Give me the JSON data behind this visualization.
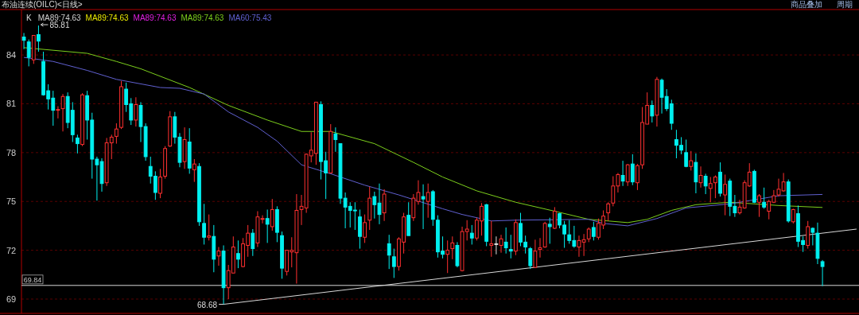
{
  "chart_data": {
    "type": "candlestick",
    "title": "布油连续(OILC)<日线>",
    "legend_title": "K",
    "annotations": [
      "85.81",
      "68.68",
      "商品叠加",
      "周期"
    ],
    "categories": [
      null,
      null,
      null,
      null,
      null,
      null,
      null,
      null,
      null,
      null,
      null,
      null,
      null,
      null,
      null,
      null,
      null,
      null,
      null,
      null,
      null,
      null,
      null,
      null,
      null,
      null,
      null,
      null,
      null,
      null,
      null,
      null,
      null,
      null,
      null,
      null,
      null,
      null,
      null,
      null,
      null,
      null,
      null,
      null,
      null,
      null,
      null,
      null,
      null,
      null,
      null,
      null,
      null,
      null,
      null,
      null,
      null,
      null,
      null,
      null,
      null,
      null,
      null,
      null,
      null,
      null,
      null,
      null,
      null,
      null,
      null,
      null,
      null,
      null,
      null,
      null,
      null,
      null,
      null,
      null,
      null,
      null,
      null,
      null,
      null,
      null,
      null,
      null,
      null,
      null,
      null,
      null,
      null,
      null,
      null,
      null,
      null,
      null,
      null,
      null,
      null,
      null,
      null,
      null,
      null,
      null,
      null,
      null,
      null,
      null,
      null,
      null,
      null,
      null,
      null,
      null,
      null,
      null,
      null,
      null,
      null,
      null,
      null,
      null,
      null,
      null,
      null,
      null,
      null,
      null,
      null,
      null,
      null,
      null,
      null,
      null,
      null,
      null,
      null,
      null,
      null,
      null,
      null,
      null,
      null,
      null,
      null,
      null,
      null,
      null,
      null,
      null,
      null,
      null,
      null,
      null,
      null,
      null,
      null,
      null,
      null,
      null,
      null,
      null,
      null,
      null,
      null,
      null,
      null,
      null,
      null,
      null
    ],
    "ohlc": [
      [
        85.1,
        85.35,
        84.36,
        84.9
      ],
      [
        84.8,
        84.95,
        83.3,
        83.85
      ],
      [
        83.7,
        85.2,
        83.45,
        85.2
      ],
      [
        85.25,
        85.81,
        84.2,
        84.85
      ],
      [
        83.6,
        84.2,
        81.5,
        81.55
      ],
      [
        81.8,
        82.2,
        80.65,
        81.3
      ],
      [
        81.35,
        81.8,
        79.65,
        80.6
      ],
      [
        80.6,
        80.85,
        80.1,
        80.65
      ],
      [
        80.7,
        81.6,
        79.3,
        81.45
      ],
      [
        81.45,
        81.7,
        79.5,
        79.85
      ],
      [
        80.6,
        81.1,
        78.65,
        79.1
      ],
      [
        78.9,
        79.1,
        77.95,
        78.55
      ],
      [
        78.5,
        81.65,
        78.4,
        81.55
      ],
      [
        81.5,
        81.8,
        78.8,
        80.0
      ],
      [
        80.0,
        80.45,
        76.4,
        77.6
      ],
      [
        77.6,
        77.75,
        75.05,
        77.25
      ],
      [
        77.45,
        77.65,
        75.6,
        76.1
      ],
      [
        76.15,
        78.9,
        75.95,
        78.6
      ],
      [
        78.6,
        79.1,
        77.6,
        78.95
      ],
      [
        79.0,
        79.8,
        78.55,
        79.45
      ],
      [
        79.55,
        82.4,
        79.45,
        82.05
      ],
      [
        81.9,
        82.3,
        80.5,
        80.95
      ],
      [
        81.0,
        81.35,
        79.7,
        80.0
      ],
      [
        80.0,
        81.4,
        79.6,
        80.95
      ],
      [
        80.9,
        81.1,
        78.65,
        79.6
      ],
      [
        79.6,
        79.8,
        77.5,
        77.75
      ],
      [
        77.15,
        77.75,
        76.1,
        76.55
      ],
      [
        76.55,
        76.85,
        75.1,
        75.55
      ],
      [
        75.5,
        77.0,
        75.2,
        76.5
      ],
      [
        76.55,
        78.4,
        76.4,
        78.25
      ],
      [
        78.4,
        80.55,
        78.35,
        80.2
      ],
      [
        80.2,
        80.5,
        78.55,
        78.95
      ],
      [
        78.95,
        79.2,
        77.1,
        77.4
      ],
      [
        77.45,
        79.55,
        77.0,
        78.8
      ],
      [
        78.65,
        79.5,
        76.7,
        77.05
      ],
      [
        76.95,
        77.6,
        76.2,
        77.3
      ],
      [
        77.15,
        77.35,
        73.5,
        73.75
      ],
      [
        73.65,
        74.85,
        72.35,
        72.8
      ],
      [
        72.8,
        74.2,
        72.6,
        72.88
      ],
      [
        72.85,
        73.55,
        70.65,
        71.45
      ],
      [
        71.65,
        72.2,
        71.05,
        71.95
      ],
      [
        71.95,
        72.3,
        68.68,
        69.7
      ],
      [
        69.7,
        71.1,
        69.0,
        70.75
      ],
      [
        70.6,
        72.85,
        70.6,
        72.2
      ],
      [
        71.8,
        72.6,
        70.9,
        71.45
      ],
      [
        71.0,
        72.75,
        70.95,
        72.4
      ],
      [
        72.3,
        73.55,
        71.6,
        73.05
      ],
      [
        73.05,
        73.3,
        71.65,
        72.1
      ],
      [
        72.45,
        74.4,
        72.2,
        74.05
      ],
      [
        73.9,
        74.15,
        73.65,
        73.95
      ],
      [
        73.95,
        74.5,
        72.45,
        73.6
      ],
      [
        73.45,
        75.15,
        73.2,
        74.5
      ],
      [
        74.5,
        74.7,
        72.5,
        73.1
      ],
      [
        72.9,
        73.15,
        70.25,
        70.9
      ],
      [
        70.7,
        72.0,
        70.45,
        72.0
      ],
      [
        71.9,
        72.8,
        70.95,
        72.0
      ],
      [
        71.85,
        75.45,
        69.95,
        74.45
      ],
      [
        74.5,
        75.4,
        73.55,
        74.7
      ],
      [
        74.6,
        77.95,
        74.3,
        77.9
      ],
      [
        77.8,
        79.25,
        77.4,
        78.15
      ],
      [
        77.95,
        81.1,
        77.25,
        81.1
      ],
      [
        80.95,
        81.15,
        76.35,
        77.45
      ],
      [
        77.5,
        78.05,
        75.15,
        76.75
      ],
      [
        76.75,
        79.75,
        76.75,
        79.3
      ],
      [
        79.15,
        79.55,
        78.05,
        78.8
      ],
      [
        78.55,
        78.55,
        74.85,
        75.2
      ],
      [
        75.2,
        75.55,
        73.35,
        74.65
      ],
      [
        74.7,
        74.95,
        73.4,
        74.45
      ],
      [
        74.47,
        74.95,
        73.25,
        74.44
      ],
      [
        74.05,
        74.5,
        72.1,
        72.85
      ],
      [
        72.8,
        74.2,
        72.45,
        73.7
      ],
      [
        73.85,
        75.9,
        73.25,
        75.2
      ],
      [
        75.3,
        75.6,
        73.95,
        74.8
      ],
      [
        74.9,
        76.1,
        73.6,
        74.2
      ],
      [
        74.3,
        75.75,
        73.8,
        75.45
      ],
      [
        72.4,
        72.95,
        70.85,
        71.7
      ],
      [
        71.6,
        72.1,
        70.3,
        71.0
      ],
      [
        71.0,
        72.8,
        70.75,
        72.7
      ],
      [
        72.5,
        74.3,
        71.8,
        74.05
      ],
      [
        74.15,
        74.95,
        72.9,
        72.9
      ],
      [
        74.0,
        75.45,
        73.8,
        75.2
      ],
      [
        75.0,
        76.3,
        74.8,
        75.55
      ],
      [
        75.3,
        76.05,
        73.3,
        75.15
      ],
      [
        75.0,
        76.1,
        74.0,
        75.55
      ],
      [
        75.6,
        75.7,
        73.5,
        73.9
      ],
      [
        73.85,
        74.15,
        71.55,
        71.9
      ],
      [
        71.95,
        72.85,
        71.5,
        71.75
      ],
      [
        71.75,
        72.6,
        70.6,
        72.0
      ],
      [
        72.1,
        72.85,
        71.45,
        72.45
      ],
      [
        72.3,
        72.5,
        70.95,
        71.05
      ],
      [
        70.75,
        73.45,
        70.7,
        73.15
      ],
      [
        73.15,
        73.85,
        72.6,
        73.3
      ],
      [
        73.05,
        73.55,
        72.35,
        72.75
      ],
      [
        72.75,
        74.0,
        72.6,
        73.85
      ],
      [
        73.8,
        74.9,
        72.9,
        74.7
      ],
      [
        74.8,
        74.85,
        72.25,
        72.55
      ],
      [
        72.3,
        73.8,
        71.6,
        72.4
      ],
      [
        72.4,
        72.85,
        71.75,
        72.4
      ],
      [
        72.3,
        72.95,
        71.85,
        72.7
      ],
      [
        72.5,
        73.4,
        71.8,
        72.15
      ],
      [
        72.05,
        72.95,
        71.5,
        71.95
      ],
      [
        71.95,
        73.9,
        71.7,
        73.7
      ],
      [
        73.65,
        74.3,
        72.25,
        72.5
      ],
      [
        72.5,
        72.9,
        71.8,
        72.2
      ],
      [
        72.1,
        72.2,
        70.85,
        71.05
      ],
      [
        70.95,
        72.65,
        70.95,
        71.95
      ],
      [
        72.05,
        72.75,
        71.55,
        72.15
      ],
      [
        72.2,
        73.75,
        72.15,
        73.65
      ],
      [
        73.6,
        74.0,
        72.4,
        73.45
      ],
      [
        73.35,
        74.65,
        73.3,
        74.4
      ],
      [
        74.25,
        74.3,
        73.35,
        73.55
      ],
      [
        73.55,
        73.8,
        72.15,
        73.0
      ],
      [
        72.95,
        73.85,
        72.4,
        72.6
      ],
      [
        72.6,
        73.5,
        72.15,
        72.25
      ],
      [
        72.2,
        72.9,
        71.6,
        72.6
      ],
      [
        72.5,
        73.0,
        71.65,
        72.65
      ],
      [
        72.7,
        73.4,
        72.5,
        73.3
      ],
      [
        73.4,
        73.75,
        72.6,
        72.85
      ],
      [
        72.8,
        73.95,
        72.65,
        73.65
      ],
      [
        73.55,
        74.45,
        73.3,
        74.1
      ],
      [
        74.3,
        74.95,
        73.8,
        74.85
      ],
      [
        74.9,
        76.55,
        74.7,
        75.95
      ],
      [
        75.95,
        76.75,
        75.55,
        76.65
      ],
      [
        76.6,
        77.5,
        75.95,
        76.25
      ],
      [
        76.2,
        77.3,
        75.95,
        77.25
      ],
      [
        77.3,
        77.9,
        76.0,
        76.2
      ],
      [
        76.15,
        77.3,
        75.7,
        77.2
      ],
      [
        77.25,
        80.8,
        77.0,
        79.85
      ],
      [
        79.75,
        81.7,
        79.75,
        80.9
      ],
      [
        80.9,
        81.2,
        79.85,
        80.25
      ],
      [
        80.3,
        82.65,
        79.6,
        82.5
      ],
      [
        82.45,
        82.55,
        80.4,
        81.4
      ],
      [
        81.45,
        81.9,
        80.55,
        80.7
      ],
      [
        81.0,
        81.25,
        79.4,
        79.8
      ],
      [
        78.8,
        79.4,
        77.65,
        78.45
      ],
      [
        78.45,
        78.95,
        77.9,
        78.15
      ],
      [
        78.0,
        78.8,
        77.1,
        77.15
      ],
      [
        77.15,
        78.1,
        76.9,
        77.5
      ],
      [
        77.4,
        77.95,
        75.5,
        76.2
      ],
      [
        76.15,
        77.15,
        75.85,
        76.6
      ],
      [
        76.55,
        76.7,
        75.45,
        75.95
      ],
      [
        75.8,
        76.5,
        74.95,
        76.1
      ],
      [
        76.15,
        76.6,
        75.2,
        76.5
      ],
      [
        76.8,
        77.4,
        75.3,
        75.5
      ],
      [
        75.4,
        76.65,
        74.15,
        76.05
      ],
      [
        76.25,
        76.4,
        74.1,
        74.7
      ],
      [
        74.7,
        75.4,
        74.05,
        74.3
      ],
      [
        74.3,
        75.1,
        74.2,
        74.65
      ],
      [
        74.6,
        76.3,
        74.55,
        76.15
      ],
      [
        75.95,
        77.35,
        75.9,
        76.8
      ],
      [
        76.85,
        76.95,
        74.9,
        74.95
      ],
      [
        74.95,
        75.45,
        74.05,
        75.35
      ],
      [
        74.95,
        75.85,
        74.55,
        74.65
      ],
      [
        74.4,
        75.1,
        73.9,
        75.0
      ],
      [
        74.95,
        75.7,
        74.9,
        75.35
      ],
      [
        75.4,
        76.4,
        75.3,
        75.75
      ],
      [
        75.65,
        76.75,
        75.6,
        76.2
      ],
      [
        76.2,
        76.35,
        73.7,
        73.8
      ],
      [
        73.75,
        74.55,
        73.65,
        74.5
      ],
      [
        74.25,
        74.75,
        72.2,
        72.55
      ],
      [
        72.6,
        72.85,
        71.9,
        72.35
      ],
      [
        72.3,
        73.8,
        72.1,
        73.45
      ],
      [
        73.35,
        73.4,
        72.3,
        73.1
      ],
      [
        73.05,
        73.7,
        71.15,
        71.5
      ],
      [
        71.3,
        71.4,
        69.8,
        71.0
      ],
      null,
      null,
      null,
      null,
      null,
      null,
      null
    ],
    "series": [
      {
        "name": "MA89:74.63",
        "type": "line",
        "color": "#d0d0d0",
        "values": [
          null,
          null,
          null,
          null,
          null,
          null,
          null,
          null,
          null,
          null,
          null,
          null,
          null,
          null,
          null,
          null,
          null,
          null,
          null,
          null,
          null,
          null,
          null,
          null,
          null,
          null,
          null,
          null,
          null,
          null,
          null,
          null,
          null,
          null,
          null,
          null,
          null,
          null,
          null,
          null,
          null,
          null,
          null,
          null,
          null,
          null,
          null,
          null,
          null,
          null,
          null,
          null,
          null,
          null,
          null,
          null,
          null,
          null,
          null,
          null,
          null,
          null,
          null,
          null,
          null,
          null,
          null,
          null,
          null,
          null,
          null,
          null,
          null,
          null,
          null,
          null,
          null,
          null,
          null,
          null,
          null,
          null,
          null,
          null,
          null,
          null,
          null,
          null,
          null,
          null,
          null,
          null,
          null,
          null,
          null,
          null,
          null,
          null,
          null,
          null,
          null,
          null,
          null,
          null,
          null,
          null,
          null,
          null,
          null,
          null,
          null,
          null,
          null,
          null,
          null,
          null,
          null,
          null,
          null,
          null,
          null,
          null,
          null,
          null,
          null,
          null,
          null,
          null,
          null,
          null,
          null,
          null,
          null,
          null,
          null,
          null,
          null,
          null,
          null,
          null,
          null,
          null,
          null,
          null,
          null,
          null,
          null,
          null,
          null,
          null,
          null,
          null,
          null,
          null,
          null,
          null,
          null,
          null,
          null,
          null,
          null,
          null,
          null,
          null,
          null,
          null,
          null,
          null,
          null,
          null,
          null,
          null
        ]
      },
      {
        "name": "MA89:74.63",
        "type": "line",
        "color": "#e8e800",
        "values": [
          null,
          null,
          null,
          null,
          null,
          null,
          null,
          null,
          null,
          null,
          null,
          null,
          null,
          null,
          null,
          null,
          null,
          null,
          null,
          null,
          null,
          null,
          null,
          null,
          null,
          null,
          null,
          null,
          null,
          null,
          null,
          null,
          null,
          null,
          null,
          null,
          null,
          null,
          null,
          null,
          null,
          null,
          null,
          null,
          null,
          null,
          null,
          null,
          null,
          null,
          null,
          null,
          null,
          null,
          null,
          null,
          null,
          null,
          null,
          null,
          null,
          null,
          null,
          null,
          null,
          null,
          null,
          null,
          null,
          null,
          null,
          null,
          null,
          null,
          null,
          null,
          null,
          null,
          null,
          null,
          null,
          null,
          null,
          null,
          null,
          null,
          null,
          null,
          null,
          null,
          null,
          null,
          null,
          null,
          null,
          null,
          null,
          null,
          null,
          null,
          null,
          null,
          null,
          null,
          null,
          null,
          null,
          null,
          null,
          null,
          null,
          null,
          null,
          null,
          null,
          null,
          null,
          null,
          null,
          null,
          null,
          null,
          null,
          null,
          null,
          null,
          null,
          null,
          null,
          null,
          null,
          null,
          null,
          null,
          null,
          null,
          null,
          null,
          null,
          null,
          null,
          null,
          null,
          null,
          null,
          null,
          null,
          null,
          null,
          null,
          null,
          null,
          null,
          null,
          null,
          null,
          null,
          null,
          null,
          null,
          null,
          null,
          null,
          null,
          null,
          null,
          null,
          null,
          null,
          null,
          null,
          null
        ]
      },
      {
        "name": "MA89:74.63",
        "type": "line",
        "color": "#e020e0",
        "values": [
          null,
          null,
          null,
          null,
          null,
          null,
          null,
          null,
          null,
          null,
          null,
          null,
          null,
          null,
          null,
          null,
          null,
          null,
          null,
          null,
          null,
          null,
          null,
          null,
          null,
          null,
          null,
          null,
          null,
          null,
          null,
          null,
          null,
          null,
          null,
          null,
          null,
          null,
          null,
          null,
          null,
          null,
          null,
          null,
          null,
          null,
          null,
          null,
          null,
          null,
          null,
          null,
          null,
          null,
          null,
          null,
          null,
          null,
          null,
          null,
          null,
          null,
          null,
          null,
          null,
          null,
          null,
          null,
          null,
          null,
          null,
          null,
          null,
          null,
          null,
          null,
          null,
          null,
          null,
          null,
          null,
          null,
          null,
          null,
          null,
          null,
          null,
          null,
          null,
          null,
          null,
          null,
          null,
          null,
          null,
          null,
          null,
          null,
          null,
          null,
          null,
          null,
          null,
          null,
          null,
          null,
          null,
          null,
          null,
          null,
          null,
          null,
          null,
          null,
          null,
          null,
          null,
          null,
          null,
          null,
          null,
          null,
          null,
          null,
          null,
          null,
          null,
          null,
          null,
          null,
          null,
          null,
          null,
          null,
          null,
          null,
          null,
          null,
          null,
          null,
          null,
          null,
          null,
          null,
          null,
          null,
          null,
          null,
          null,
          null,
          null,
          null,
          null,
          null,
          null,
          null,
          null,
          null,
          null,
          null,
          null,
          null,
          null,
          null,
          null,
          null,
          null,
          null,
          null,
          null,
          null,
          null
        ]
      },
      {
        "name": "MA89:74.63",
        "type": "line",
        "color": "#7ccf1c",
        "values": [
          84.45,
          null,
          null,
          null,
          null,
          null,
          null,
          null,
          null,
          null,
          null,
          null,
          null,
          84.1,
          null,
          null,
          null,
          null,
          null,
          83.6,
          null,
          null,
          null,
          null,
          83.15,
          null,
          null,
          null,
          null,
          null,
          null,
          null,
          null,
          null,
          82.0,
          null,
          null,
          null,
          null,
          null,
          null,
          null,
          80.9,
          null,
          null,
          null,
          null,
          null,
          null,
          null,
          80.0,
          null,
          null,
          null,
          null,
          null,
          null,
          79.3,
          null,
          null,
          null,
          null,
          null,
          79.3,
          null,
          null,
          null,
          null,
          null,
          null,
          null,
          null,
          78.55,
          null,
          null,
          null,
          null,
          null,
          null,
          null,
          77.4,
          null,
          null,
          null,
          null,
          null,
          76.5,
          null,
          null,
          null,
          null,
          null,
          null,
          75.65,
          null,
          null,
          null,
          null,
          null,
          null,
          null,
          74.95,
          null,
          null,
          null,
          null,
          null,
          null,
          null,
          74.4,
          null,
          null,
          null,
          null,
          null,
          null,
          73.9,
          null,
          null,
          null,
          null,
          null,
          null,
          null,
          73.7,
          null,
          null,
          null,
          73.9,
          null,
          null,
          null,
          null,
          74.45,
          null,
          null,
          null,
          null,
          74.8,
          null,
          null,
          null,
          null,
          null,
          null,
          74.95,
          null,
          null,
          null,
          null,
          null,
          null,
          null,
          null,
          null,
          74.75,
          null,
          null,
          null,
          null,
          null,
          null,
          null,
          null,
          74.63,
          null,
          null,
          null,
          null,
          null,
          null,
          null
        ]
      },
      {
        "name": "MA60:75.43",
        "type": "line",
        "color": "#6060d0",
        "values": [
          83.85,
          null,
          null,
          null,
          null,
          null,
          83.6,
          null,
          null,
          null,
          null,
          null,
          null,
          83.05,
          null,
          null,
          null,
          null,
          null,
          82.5,
          null,
          null,
          null,
          null,
          null,
          null,
          null,
          null,
          82.0,
          null,
          null,
          null,
          81.95,
          null,
          null,
          null,
          null,
          81.6,
          null,
          null,
          null,
          null,
          80.5,
          null,
          null,
          null,
          null,
          null,
          79.55,
          null,
          null,
          null,
          78.7,
          null,
          null,
          null,
          null,
          77.25,
          null,
          null,
          null,
          null,
          null,
          76.7,
          null,
          null,
          null,
          null,
          null,
          null,
          76.0,
          null,
          null,
          null,
          null,
          null,
          null,
          75.4,
          null,
          null,
          null,
          null,
          null,
          null,
          null,
          null,
          74.55,
          null,
          null,
          null,
          74.2,
          null,
          null,
          null,
          null,
          null,
          73.8,
          null,
          null,
          null,
          null,
          73.85,
          null,
          null,
          null,
          null,
          null,
          null,
          null,
          null,
          null,
          null,
          null,
          null,
          null,
          null,
          73.9,
          null,
          null,
          73.65,
          null,
          null,
          null,
          null,
          73.5,
          null,
          null,
          null,
          null,
          null,
          73.95,
          null,
          null,
          null,
          null,
          null,
          74.6,
          null,
          null,
          null,
          null,
          null,
          null,
          null,
          null,
          74.85,
          null,
          null,
          null,
          null,
          null,
          null,
          null,
          null,
          null,
          75.35,
          null,
          null,
          null,
          null,
          null,
          null,
          null,
          null,
          75.43,
          null,
          null,
          null,
          null,
          null,
          null,
          null
        ]
      },
      {
        "type": "line",
        "color": "#d8d8d8",
        "values": [
          null,
          null,
          null,
          null,
          null,
          null,
          null,
          null,
          null,
          null,
          null,
          null,
          null,
          null,
          null,
          null,
          null,
          null,
          null,
          null,
          null,
          null,
          null,
          null,
          null,
          null,
          null,
          null,
          null,
          null,
          null,
          null,
          null,
          null,
          null,
          null,
          null,
          null,
          null,
          null,
          null,
          68.68,
          null,
          null,
          null,
          null,
          null,
          null,
          null,
          null,
          null,
          null,
          null,
          null,
          null,
          null,
          null,
          null,
          null,
          null,
          null,
          null,
          null,
          null,
          null,
          null,
          null,
          null,
          null,
          null,
          null,
          null,
          null,
          null,
          null,
          null,
          null,
          null,
          null,
          null,
          null,
          null,
          null,
          null,
          null,
          null,
          null,
          null,
          null,
          null,
          null,
          null,
          null,
          null,
          null,
          null,
          null,
          null,
          null,
          null,
          null,
          null,
          null,
          null,
          null,
          null,
          null,
          null,
          null,
          null,
          null,
          null,
          null,
          null,
          null,
          null,
          null,
          null,
          null,
          null,
          null,
          null,
          null,
          null,
          null,
          null,
          null,
          null,
          null,
          null,
          null,
          null,
          null,
          null,
          null,
          null,
          null,
          null,
          null,
          null,
          null,
          null,
          null,
          null,
          null,
          null,
          null,
          null,
          null,
          null,
          null,
          null,
          null,
          null,
          null,
          null,
          null,
          null,
          null,
          null,
          null,
          null,
          null,
          null,
          null,
          null,
          null,
          null,
          null,
          null,
          null,
          73.3
        ]
      }
    ],
    "ref_lines": [
      {
        "axis": "y",
        "value": 69.84,
        "label": "69.84",
        "color": "#d8d8d8"
      }
    ],
    "ylim": [
      68.12,
      86.79
    ],
    "yticks": [
      69,
      72,
      75,
      78,
      81,
      84
    ],
    "grid": "y",
    "tick_labels": "y"
  }
}
